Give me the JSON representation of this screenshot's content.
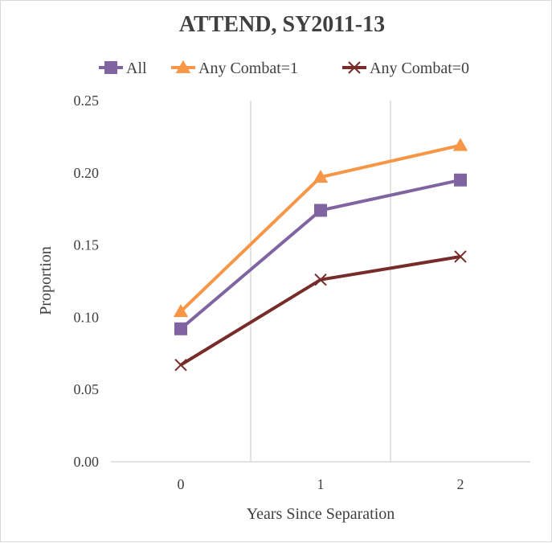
{
  "chart_data": {
    "type": "line",
    "title": "ATTEND, SY2011-13",
    "xlabel": "Years Since Separation",
    "ylabel": "Proportion",
    "categories": [
      "0",
      "1",
      "2"
    ],
    "ylim": [
      0,
      0.25
    ],
    "yticks": [
      "0.00",
      "0.05",
      "0.10",
      "0.15",
      "0.20",
      "0.25"
    ],
    "ytick_values": [
      0,
      0.05,
      0.1,
      0.15,
      0.2,
      0.25
    ],
    "grid": "vertical",
    "legend_position": "top",
    "series": [
      {
        "name": "All",
        "values": [
          0.092,
          0.174,
          0.195
        ],
        "color": "#8064a2",
        "marker": "square"
      },
      {
        "name": "Any Combat=1",
        "values": [
          0.104,
          0.197,
          0.219
        ],
        "color": "#f79646",
        "marker": "triangle"
      },
      {
        "name": "Any Combat=0",
        "values": [
          0.067,
          0.126,
          0.142
        ],
        "color": "#772c2a",
        "marker": "x"
      }
    ]
  }
}
